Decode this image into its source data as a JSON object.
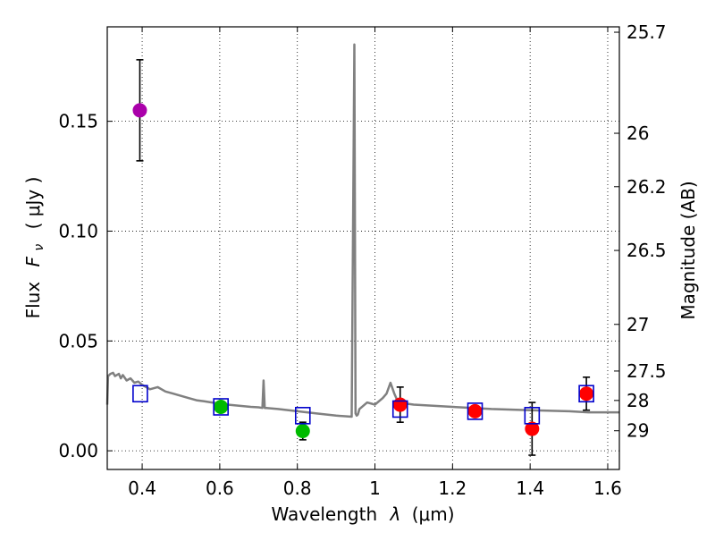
{
  "chart_data": {
    "type": "scatter",
    "xlabel_text": "Wavelength",
    "xlabel_symbol": "λ",
    "xlabel_unit": "(μm)",
    "ylabel_text": "Flux",
    "ylabel_symbol": "F",
    "ylabel_subscript": "ν",
    "ylabel_unit": "( μJy )",
    "y2label": "Magnitude (AB)",
    "xlim": [
      0.31,
      1.63
    ],
    "ylim": [
      -0.0085,
      0.193
    ],
    "x_ticks": [
      0.4,
      0.6,
      0.8,
      1.0,
      1.2,
      1.4,
      1.6
    ],
    "x_tick_labels": [
      "0.4",
      "0.6",
      "0.8",
      "1",
      "1.2",
      "1.4",
      "1.6"
    ],
    "y_ticks": [
      0.0,
      0.05,
      0.1,
      0.15
    ],
    "y_tick_labels": [
      "0.00",
      "0.05",
      "0.10",
      "0.15"
    ],
    "mag_ticks": [
      25.7,
      26,
      26.2,
      26.5,
      27,
      27.5,
      28,
      29
    ],
    "mag_tick_labels": [
      "25.7",
      "26",
      "26.2",
      "26.5",
      "27",
      "27.5",
      "28",
      "29"
    ],
    "grid": true,
    "colors": {
      "spectrum": "#808080",
      "model_box": "#0000cc",
      "errorbar": "#000000",
      "axis": "#000000"
    },
    "spectrum": {
      "name": "model spectrum",
      "x": [
        0.31,
        0.312,
        0.318,
        0.325,
        0.33,
        0.34,
        0.345,
        0.35,
        0.36,
        0.37,
        0.38,
        0.39,
        0.4,
        0.42,
        0.44,
        0.46,
        0.48,
        0.5,
        0.52,
        0.54,
        0.56,
        0.58,
        0.6,
        0.62,
        0.65,
        0.68,
        0.7,
        0.71,
        0.713,
        0.716,
        0.72,
        0.75,
        0.8,
        0.85,
        0.9,
        0.94,
        0.947,
        0.95,
        0.953,
        0.956,
        0.96,
        0.98,
        1.0,
        1.02,
        1.03,
        1.04,
        1.05,
        1.06,
        1.1,
        1.2,
        1.3,
        1.4,
        1.5,
        1.55,
        1.63
      ],
      "y": [
        0.021,
        0.034,
        0.035,
        0.0355,
        0.034,
        0.035,
        0.033,
        0.0345,
        0.032,
        0.033,
        0.031,
        0.0315,
        0.03,
        0.028,
        0.029,
        0.027,
        0.026,
        0.025,
        0.024,
        0.023,
        0.0225,
        0.022,
        0.0215,
        0.021,
        0.0205,
        0.02,
        0.0198,
        0.0195,
        0.032,
        0.0195,
        0.0195,
        0.019,
        0.018,
        0.017,
        0.016,
        0.0155,
        0.185,
        0.017,
        0.016,
        0.0165,
        0.019,
        0.022,
        0.021,
        0.024,
        0.026,
        0.031,
        0.026,
        0.022,
        0.021,
        0.02,
        0.019,
        0.0185,
        0.018,
        0.0175,
        0.0175
      ]
    },
    "model_photometry": {
      "name": "model fluxes",
      "x": [
        0.395,
        0.603,
        0.814,
        1.065,
        1.258,
        1.405,
        1.545
      ],
      "y": [
        0.026,
        0.02,
        0.016,
        0.019,
        0.018,
        0.016,
        0.026
      ]
    },
    "observed": {
      "name": "observed fluxes",
      "points": [
        {
          "x": 0.394,
          "y": 0.155,
          "err": 0.023,
          "color": "#aa00aa"
        },
        {
          "x": 0.603,
          "y": 0.02,
          "err": 0.0,
          "color": "#00bb00"
        },
        {
          "x": 0.814,
          "y": 0.009,
          "err": 0.004,
          "color": "#00bb00"
        },
        {
          "x": 1.065,
          "y": 0.021,
          "err": 0.008,
          "color": "#ff0000"
        },
        {
          "x": 1.258,
          "y": 0.018,
          "err": 0.0,
          "color": "#ff0000"
        },
        {
          "x": 1.405,
          "y": 0.01,
          "err": 0.012,
          "color": "#ff0000"
        },
        {
          "x": 1.545,
          "y": 0.026,
          "err": 0.0075,
          "color": "#ff0000"
        }
      ]
    }
  }
}
